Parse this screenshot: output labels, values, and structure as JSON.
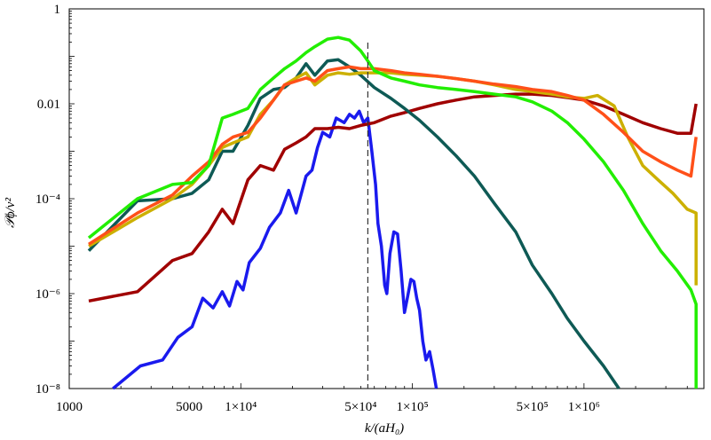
{
  "chart_data": {
    "type": "line",
    "title": "",
    "xlabel": "k/(aH₀)",
    "ylabel": "𝒫ϕ/v²",
    "xscale": "log",
    "yscale": "log",
    "xlim": [
      1000,
      5000000
    ],
    "ylim": [
      1e-08,
      1
    ],
    "x_ticks": [
      {
        "value": 1000,
        "label": "1000"
      },
      {
        "value": 5000,
        "label": "5000"
      },
      {
        "value": 10000,
        "label": "1×10⁴"
      },
      {
        "value": 50000,
        "label": "5×10⁴"
      },
      {
        "value": 100000,
        "label": "1×10⁵"
      },
      {
        "value": 500000,
        "label": "5×10⁵"
      },
      {
        "value": 1000000,
        "label": "1×10⁶"
      }
    ],
    "y_ticks": [
      {
        "value": 1e-08,
        "label": "10⁻⁸"
      },
      {
        "value": 1e-06,
        "label": "10⁻⁶"
      },
      {
        "value": 0.0001,
        "label": "10⁻⁴"
      },
      {
        "value": 0.01,
        "label": "0.01"
      },
      {
        "value": 1,
        "label": "1"
      }
    ],
    "reference_line": {
      "x": 55000,
      "style": "dashed"
    },
    "series": [
      {
        "name": "blue",
        "color": "#1a1aee",
        "x": [
          1800,
          2600,
          3500,
          4300,
          5200,
          6000,
          6900,
          7800,
          8600,
          9500,
          10300,
          11200,
          13000,
          14700,
          17000,
          19000,
          21000,
          24000,
          26000,
          28000,
          30000,
          33000,
          36000,
          40000,
          43000,
          46000,
          49000,
          52000,
          55000,
          58000,
          61000,
          63000,
          66000,
          69000,
          71000,
          74000,
          78000,
          82000,
          86000,
          90000,
          94000,
          98000,
          102000,
          106000,
          110000,
          115000,
          120000,
          126000,
          132000,
          138000
        ],
        "y": [
          1e-08,
          3e-08,
          4e-08,
          1.2e-07,
          2e-07,
          8e-07,
          5e-07,
          1.1e-06,
          5.5e-07,
          1.8e-06,
          1.2e-06,
          4.5e-06,
          9e-06,
          2.5e-05,
          5e-05,
          0.00015,
          5e-05,
          0.0003,
          0.0004,
          0.0012,
          0.0025,
          0.002,
          0.005,
          0.004,
          0.006,
          0.005,
          0.007,
          0.004,
          0.005,
          0.001,
          0.0002,
          3e-05,
          1e-05,
          1.5e-06,
          1e-06,
          7e-06,
          2e-05,
          1.8e-05,
          3e-06,
          4e-07,
          9e-07,
          2e-06,
          1.8e-06,
          8e-07,
          4.5e-07,
          1e-07,
          4e-08,
          6e-08,
          2.5e-08,
          1e-08
        ]
      },
      {
        "name": "dark-red",
        "color": "#a00000",
        "x": [
          1300,
          2500,
          4000,
          5200,
          6500,
          7800,
          9000,
          11000,
          13000,
          15500,
          18000,
          21000,
          24000,
          27000,
          32000,
          37000,
          43000,
          50000,
          60000,
          75000,
          90000,
          110000,
          140000,
          180000,
          230000,
          300000,
          400000,
          500000,
          650000,
          800000,
          1000000,
          1300000,
          1700000,
          2200000,
          2800000,
          3500000,
          4200000,
          4500000
        ],
        "y": [
          7e-07,
          1.1e-06,
          5e-06,
          7e-06,
          2e-05,
          6e-05,
          3e-05,
          0.00025,
          0.0005,
          0.0004,
          0.0011,
          0.0015,
          0.002,
          0.003,
          0.003,
          0.0032,
          0.003,
          0.0035,
          0.004,
          0.0055,
          0.0065,
          0.008,
          0.01,
          0.012,
          0.014,
          0.015,
          0.016,
          0.016,
          0.015,
          0.0135,
          0.012,
          0.009,
          0.006,
          0.004,
          0.003,
          0.0024,
          0.0024,
          0.01
        ]
      },
      {
        "name": "dark-teal",
        "color": "#0e5a55",
        "x": [
          1300,
          2500,
          4000,
          5200,
          6500,
          7800,
          9000,
          11000,
          13000,
          15500,
          18000,
          21000,
          24000,
          27000,
          32000,
          37000,
          43000,
          50000,
          60000,
          75000,
          90000,
          110000,
          140000,
          180000,
          230000,
          300000,
          400000,
          500000,
          650000,
          800000,
          1000000,
          1300000,
          1600000
        ],
        "y": [
          8e-06,
          9e-05,
          0.0001,
          0.00013,
          0.00025,
          0.001,
          0.001,
          0.0035,
          0.013,
          0.02,
          0.022,
          0.035,
          0.07,
          0.04,
          0.08,
          0.085,
          0.06,
          0.04,
          0.022,
          0.013,
          0.008,
          0.0045,
          0.002,
          0.0008,
          0.0003,
          8e-05,
          2e-05,
          4e-06,
          1e-06,
          3e-07,
          1e-07,
          3e-08,
          1e-08
        ]
      },
      {
        "name": "yellow",
        "color": "#ccb000",
        "x": [
          1300,
          2500,
          4000,
          5200,
          6500,
          7800,
          9000,
          11000,
          13000,
          15500,
          18000,
          21000,
          24000,
          27000,
          32000,
          37000,
          43000,
          50000,
          60000,
          75000,
          90000,
          110000,
          140000,
          180000,
          230000,
          300000,
          400000,
          500000,
          650000,
          800000,
          1000000,
          1200000,
          1500000,
          1800000,
          2200000,
          2700000,
          3300000,
          4000000,
          4500000,
          4500000
        ],
        "y": [
          1e-05,
          4e-05,
          0.0001,
          0.0002,
          0.0005,
          0.0012,
          0.0015,
          0.002,
          0.006,
          0.012,
          0.025,
          0.035,
          0.045,
          0.025,
          0.04,
          0.045,
          0.042,
          0.045,
          0.045,
          0.045,
          0.042,
          0.04,
          0.038,
          0.034,
          0.03,
          0.025,
          0.02,
          0.018,
          0.016,
          0.014,
          0.013,
          0.015,
          0.009,
          0.002,
          0.0005,
          0.00025,
          0.00013,
          6e-05,
          5e-05,
          1.5e-06
        ]
      },
      {
        "name": "orange",
        "color": "#ff5019",
        "x": [
          1300,
          2500,
          4000,
          5200,
          6500,
          7800,
          9000,
          11000,
          13000,
          15500,
          18000,
          21000,
          24000,
          27000,
          32000,
          37000,
          43000,
          50000,
          60000,
          75000,
          90000,
          110000,
          140000,
          180000,
          230000,
          300000,
          400000,
          500000,
          650000,
          800000,
          1000000,
          1300000,
          1700000,
          2200000,
          2800000,
          3500000,
          4200000,
          4500000
        ],
        "y": [
          1.1e-05,
          5e-05,
          0.00012,
          0.0003,
          0.0006,
          0.0014,
          0.002,
          0.0025,
          0.005,
          0.012,
          0.025,
          0.03,
          0.035,
          0.03,
          0.05,
          0.055,
          0.06,
          0.055,
          0.055,
          0.05,
          0.045,
          0.042,
          0.038,
          0.034,
          0.03,
          0.026,
          0.023,
          0.02,
          0.018,
          0.015,
          0.012,
          0.006,
          0.0025,
          0.001,
          0.0006,
          0.0004,
          0.0003,
          0.002
        ]
      },
      {
        "name": "green",
        "color": "#22ee00",
        "x": [
          1300,
          2500,
          4000,
          5200,
          6500,
          7800,
          9000,
          11000,
          13000,
          15500,
          18000,
          21000,
          24000,
          27000,
          32000,
          37000,
          43000,
          50000,
          55000,
          60000,
          75000,
          90000,
          110000,
          140000,
          180000,
          230000,
          300000,
          400000,
          500000,
          650000,
          800000,
          1000000,
          1300000,
          1700000,
          2200000,
          2800000,
          3500000,
          4200000,
          4500000,
          4500000
        ],
        "y": [
          1.5e-05,
          0.0001,
          0.0002,
          0.00022,
          0.0005,
          0.005,
          0.006,
          0.008,
          0.02,
          0.035,
          0.055,
          0.08,
          0.12,
          0.16,
          0.23,
          0.25,
          0.22,
          0.13,
          0.08,
          0.05,
          0.035,
          0.03,
          0.025,
          0.022,
          0.02,
          0.018,
          0.016,
          0.014,
          0.011,
          0.007,
          0.004,
          0.0018,
          0.0006,
          0.00015,
          3e-05,
          8e-06,
          3e-06,
          1.2e-06,
          6e-07,
          1e-08
        ]
      }
    ]
  }
}
